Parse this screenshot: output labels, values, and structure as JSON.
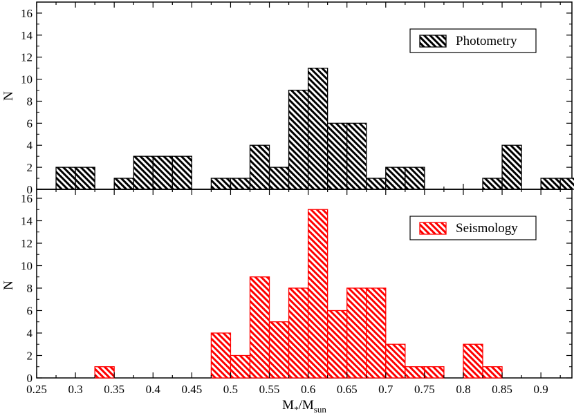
{
  "chart_data": [
    {
      "type": "bar",
      "panel": "top",
      "ylabel": "N",
      "ylim": [
        0,
        17
      ],
      "yticks": [
        0,
        2,
        4,
        6,
        8,
        10,
        12,
        14,
        16
      ],
      "xlim": [
        0.25,
        0.94
      ],
      "bin_width": 0.025,
      "legend": {
        "label": "Photometry",
        "position": "top-right"
      },
      "series": [
        {
          "name": "Photometry",
          "color": "#000000",
          "hatch": "black-diagonal",
          "bins": [
            {
              "x0": 0.275,
              "count": 2
            },
            {
              "x0": 0.3,
              "count": 2
            },
            {
              "x0": 0.35,
              "count": 1
            },
            {
              "x0": 0.375,
              "count": 3
            },
            {
              "x0": 0.4,
              "count": 3
            },
            {
              "x0": 0.425,
              "count": 3
            },
            {
              "x0": 0.475,
              "count": 1
            },
            {
              "x0": 0.5,
              "count": 1
            },
            {
              "x0": 0.525,
              "count": 4
            },
            {
              "x0": 0.55,
              "count": 2
            },
            {
              "x0": 0.575,
              "count": 9
            },
            {
              "x0": 0.6,
              "count": 11
            },
            {
              "x0": 0.625,
              "count": 6
            },
            {
              "x0": 0.65,
              "count": 6
            },
            {
              "x0": 0.675,
              "count": 1
            },
            {
              "x0": 0.7,
              "count": 2
            },
            {
              "x0": 0.725,
              "count": 2
            },
            {
              "x0": 0.825,
              "count": 1
            },
            {
              "x0": 0.85,
              "count": 4
            },
            {
              "x0": 0.9,
              "count": 1
            },
            {
              "x0": 0.925,
              "count": 1
            }
          ]
        }
      ]
    },
    {
      "type": "bar",
      "panel": "bottom",
      "ylabel": "N",
      "xlabel": "M",
      "xlabel_sub1": "*",
      "xlabel_mid": "/M",
      "xlabel_sub2": "sun",
      "ylim": [
        0,
        16.8
      ],
      "yticks": [
        0,
        2,
        4,
        6,
        8,
        10,
        12,
        14,
        16
      ],
      "xlim": [
        0.25,
        0.94
      ],
      "xticks": [
        0.25,
        0.3,
        0.35,
        0.4,
        0.45,
        0.5,
        0.55,
        0.6,
        0.65,
        0.7,
        0.75,
        0.8,
        0.85,
        0.9
      ],
      "bin_width": 0.025,
      "legend": {
        "label": "Seismology",
        "position": "top-right"
      },
      "series": [
        {
          "name": "Seismology",
          "color": "#ff0000",
          "hatch": "red-diagonal",
          "bins": [
            {
              "x0": 0.325,
              "count": 1
            },
            {
              "x0": 0.475,
              "count": 4
            },
            {
              "x0": 0.5,
              "count": 2
            },
            {
              "x0": 0.525,
              "count": 9
            },
            {
              "x0": 0.55,
              "count": 5
            },
            {
              "x0": 0.575,
              "count": 8
            },
            {
              "x0": 0.6,
              "count": 15
            },
            {
              "x0": 0.625,
              "count": 6
            },
            {
              "x0": 0.65,
              "count": 8
            },
            {
              "x0": 0.675,
              "count": 8
            },
            {
              "x0": 0.7,
              "count": 3
            },
            {
              "x0": 0.725,
              "count": 1
            },
            {
              "x0": 0.75,
              "count": 1
            },
            {
              "x0": 0.8,
              "count": 3
            },
            {
              "x0": 0.825,
              "count": 1
            }
          ]
        }
      ]
    }
  ]
}
